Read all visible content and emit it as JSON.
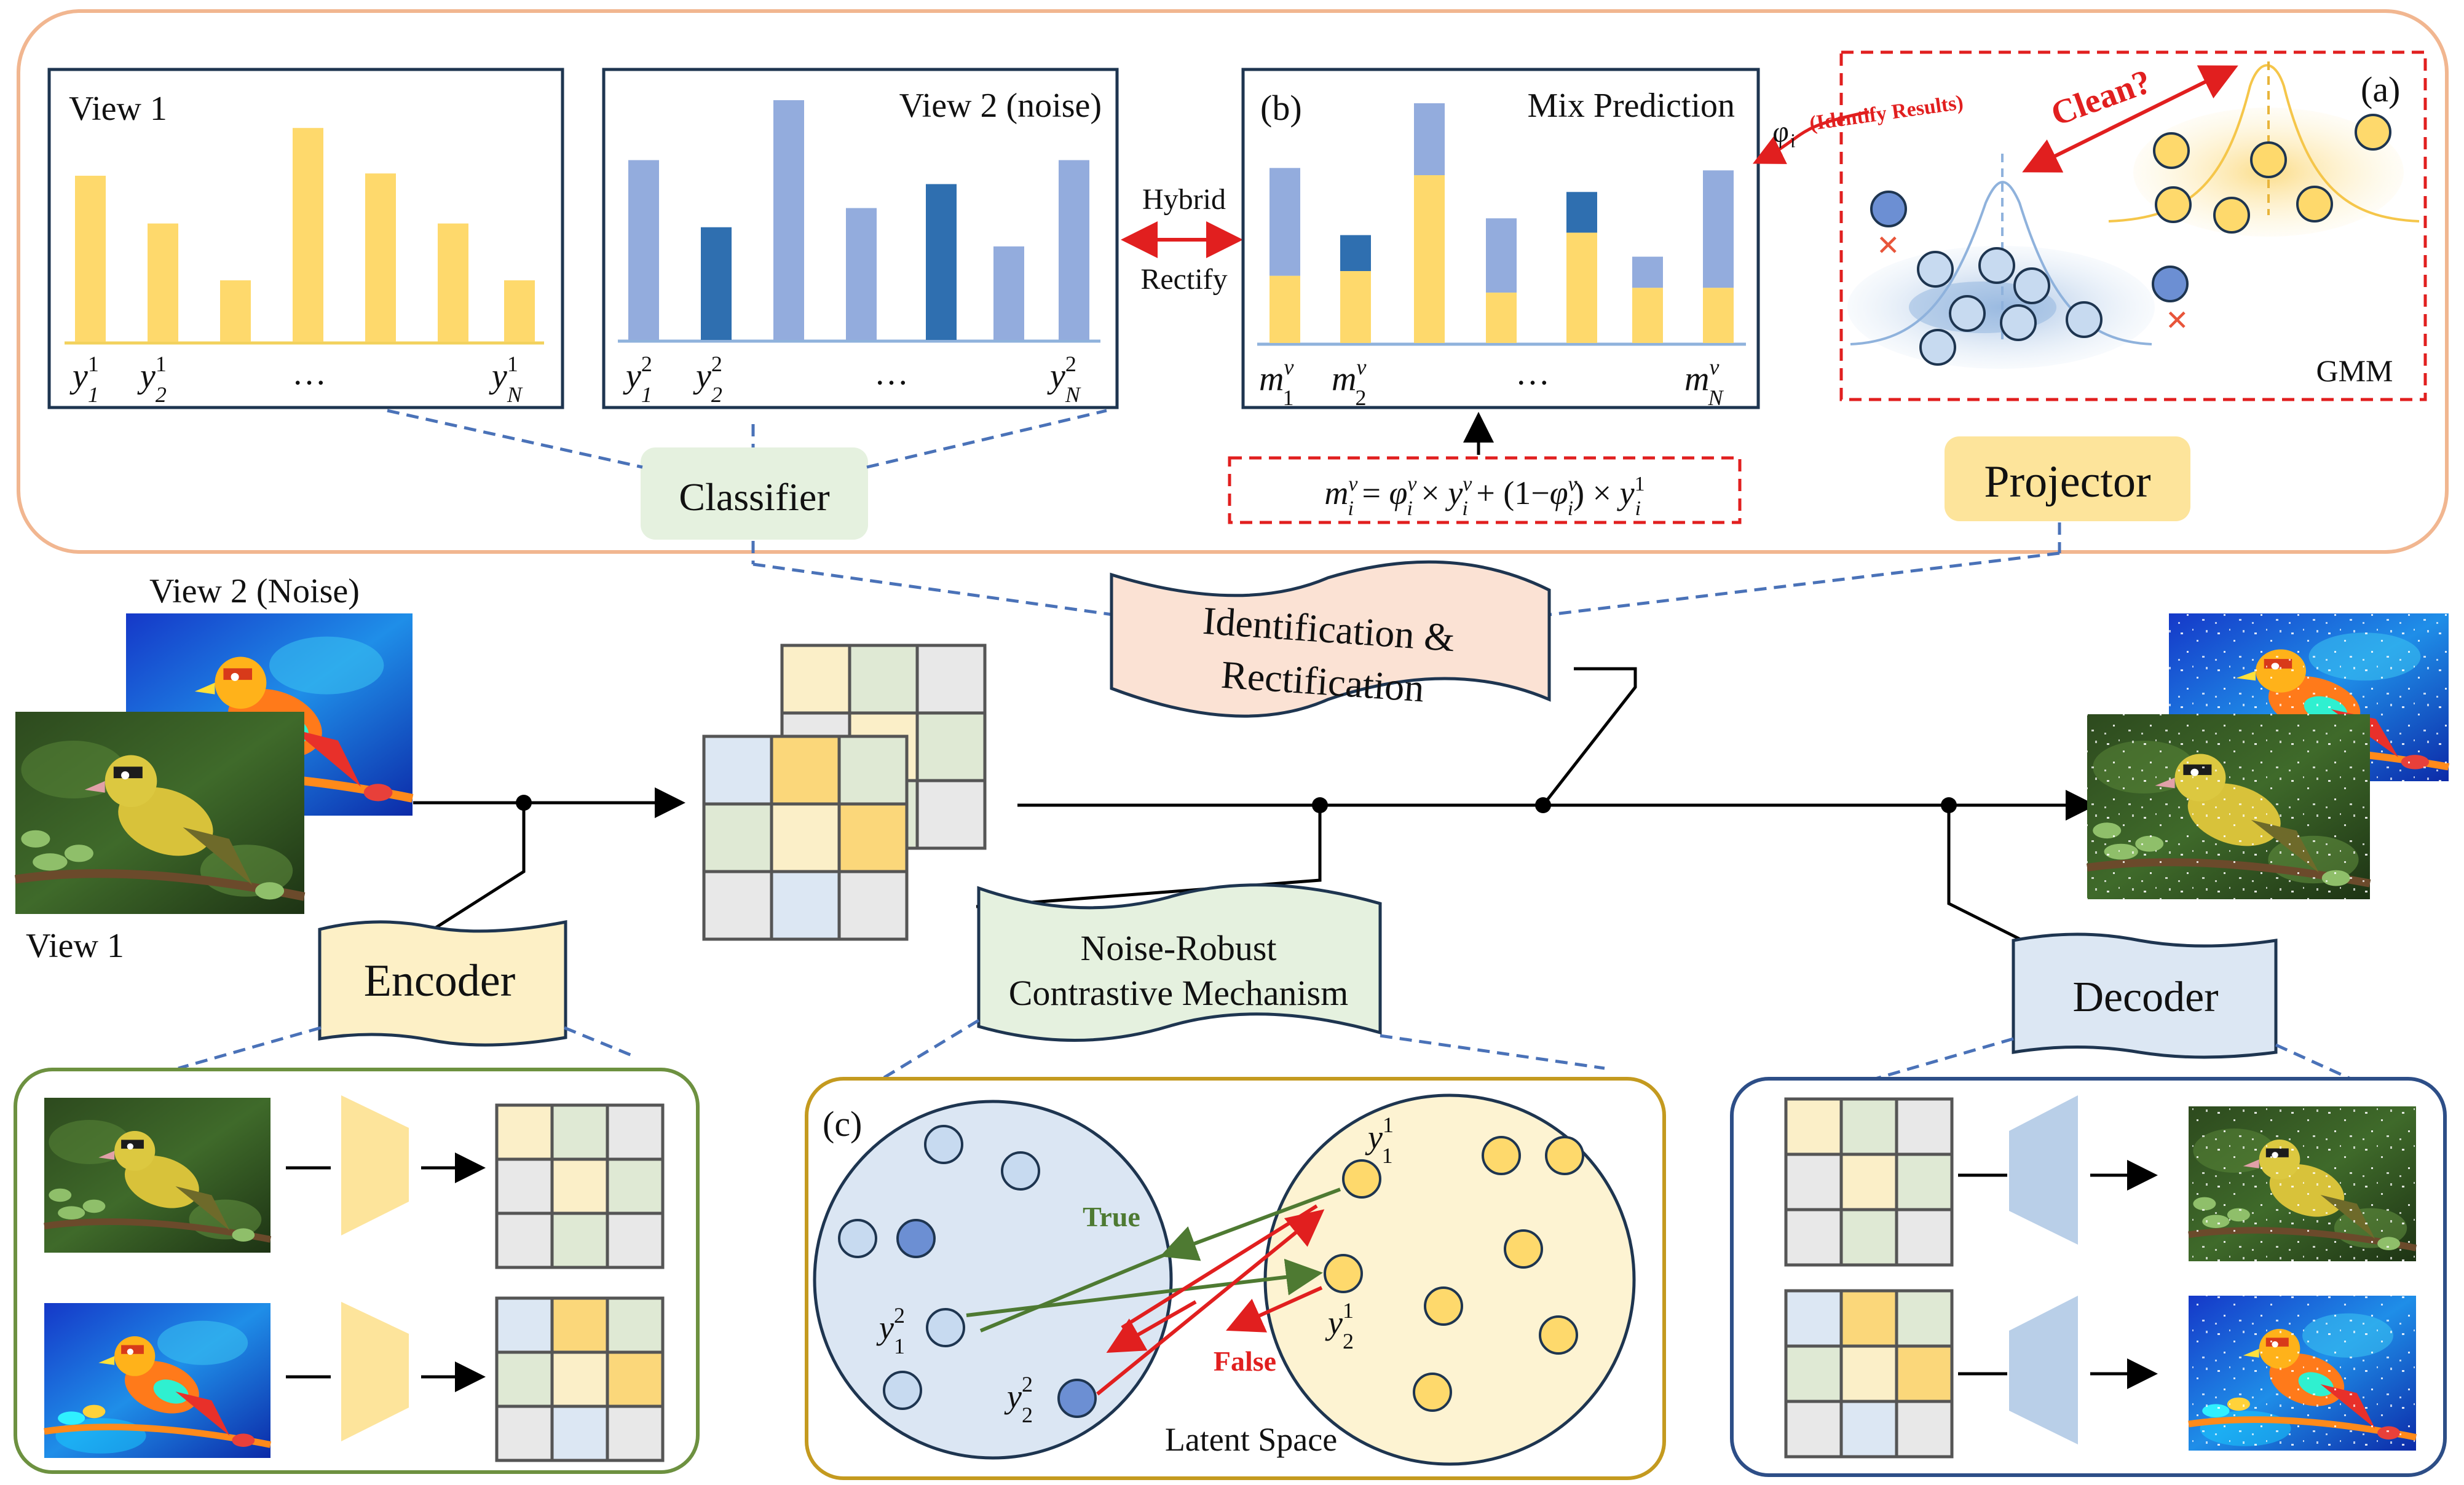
{
  "top": {
    "view1_title": "View 1",
    "view2_title": "View 2 (noise)",
    "mix_title": "Mix Prediction",
    "tag_b": "(b)",
    "tag_a": "(a)",
    "hybrid": "Hybrid",
    "rectify": "Rectify",
    "classifier": "Classifier",
    "projector": "Projector",
    "gmm": "GMM",
    "clean": "Clean?",
    "identify_results": "(Identify Results)",
    "ellipsis": "…",
    "view1_bars": [
      0.73,
      0.52,
      0.27,
      0.94,
      0.74,
      0.52,
      0.27
    ],
    "view2_bars": [
      0.75,
      0.47,
      1.0,
      0.55,
      0.65,
      0.39,
      0.75
    ],
    "view2_dark": [
      false,
      true,
      false,
      false,
      true,
      false,
      false
    ],
    "mix_bars": [
      {
        "total": 0.73,
        "y": 0.28,
        "dark": false
      },
      {
        "total": 0.45,
        "y": 0.3,
        "dark": true
      },
      {
        "total": 1.0,
        "y": 0.7,
        "dark": false
      },
      {
        "total": 0.52,
        "y": 0.21,
        "dark": false
      },
      {
        "total": 0.63,
        "y": 0.46,
        "dark": true
      },
      {
        "total": 0.36,
        "y": 0.23,
        "dark": false
      },
      {
        "total": 0.72,
        "y": 0.23,
        "dark": false
      }
    ]
  },
  "middle": {
    "view2_noise": "View 2 (Noise)",
    "view1": "View 1",
    "ident_line1": "Identification &",
    "ident_line2": "Rectification",
    "encoder": "Encoder",
    "nr_line1": "Noise-Robust",
    "nr_line2": "Contrastive Mechanism",
    "decoder": "Decoder"
  },
  "bottom": {
    "tag_c": "(c)",
    "true_label": "True",
    "false_label": "False",
    "latent_space": "Latent Space"
  },
  "colors": {
    "yellow": "#fed96c",
    "light_blue": "#93acdd",
    "dark_blue": "#2f6fb0",
    "red": "#e11f1f",
    "green_arrow": "#4e7a32",
    "dash_blue": "#4a72b8",
    "orange_border": "#f1b690",
    "green_border": "#6d9140",
    "gold_border": "#c49a1f",
    "navy_border": "#2d4e87"
  }
}
